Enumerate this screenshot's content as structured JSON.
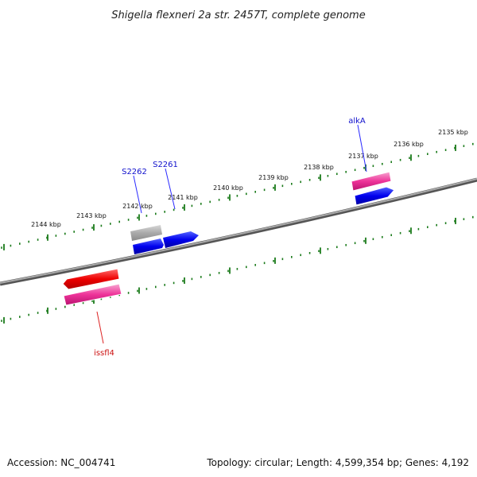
{
  "map_title": "Shigella flexneri 2a str. 2457T, complete genome",
  "accession": "Accession: NC_004741",
  "topology_summary": "Topology: circular; Length: 4,599,354 bp; Genes: 4,192",
  "scale": {
    "unit": "kbp",
    "labels": [
      "2135 kbp",
      "2136 kbp",
      "2137 kbp",
      "2138 kbp",
      "2139 kbp",
      "2140 kbp",
      "2141 kbp",
      "2142 kbp",
      "2143 kbp",
      "2144 kbp"
    ]
  },
  "gene_labels": [
    {
      "name": "alkA",
      "color": "#1010cc"
    },
    {
      "name": "S2261",
      "color": "#1010cc"
    },
    {
      "name": "S2262",
      "color": "#1010cc"
    },
    {
      "name": "issfl4",
      "color": "#cc1010"
    }
  ],
  "feature_colors": {
    "cds_forward": "#0000ee",
    "gene_pink": "#ee3399",
    "mobile_element": "#ee0000",
    "pseudo_gray": "#aaaaaa",
    "ruler_tick": "#1a7a1a",
    "backbone": "#777777"
  }
}
